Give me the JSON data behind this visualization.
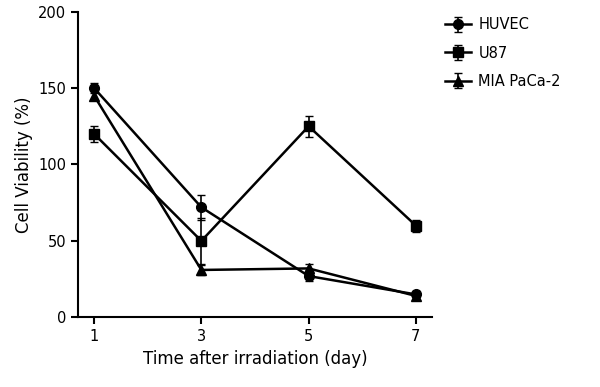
{
  "x": [
    1,
    3,
    5,
    7
  ],
  "HUVEC": {
    "y": [
      150,
      72,
      27,
      15
    ],
    "yerr": [
      3,
      8,
      3,
      2
    ],
    "marker": "o",
    "label": "HUVEC"
  },
  "U87": {
    "y": [
      120,
      50,
      125,
      60
    ],
    "yerr": [
      5,
      15,
      7,
      4
    ],
    "marker": "s",
    "label": "U87"
  },
  "MIA": {
    "y": [
      145,
      31,
      32,
      14
    ],
    "yerr": [
      3,
      3,
      3,
      2
    ],
    "marker": "^",
    "label": "MIA PaCa-2"
  },
  "xlabel": "Time after irradiation (day)",
  "ylabel": "Cell Viability (%)",
  "ylim": [
    0,
    200
  ],
  "yticks": [
    0,
    50,
    100,
    150,
    200
  ],
  "xticks": [
    1,
    3,
    5,
    7
  ],
  "color": "black",
  "linewidth": 1.8,
  "markersize": 7,
  "capsize": 3,
  "legend_fontsize": 10.5,
  "axis_label_fontsize": 12,
  "tick_fontsize": 10.5
}
